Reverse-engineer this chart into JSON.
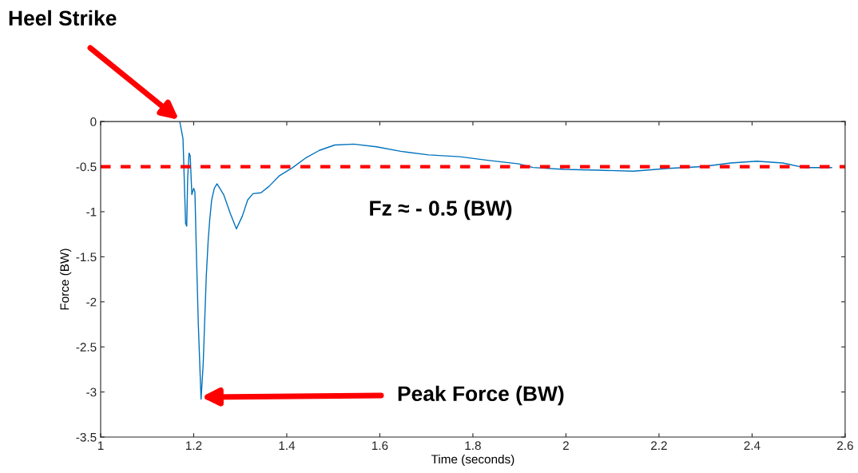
{
  "chart_data": {
    "type": "line",
    "xlabel": "Time (seconds)",
    "ylabel": "Force (BW)",
    "x": [
      1.17,
      1.177,
      1.1826,
      1.185,
      1.187,
      1.19,
      1.1925,
      1.196,
      1.2,
      1.2026,
      1.2055,
      1.21,
      1.2158,
      1.2203,
      1.2243,
      1.227,
      1.2312,
      1.2346,
      1.2386,
      1.2443,
      1.25,
      1.2644,
      1.2787,
      1.2918,
      1.3044,
      1.316,
      1.3274,
      1.3445,
      1.3617,
      1.3845,
      1.413,
      1.4417,
      1.47,
      1.503,
      1.544,
      1.593,
      1.645,
      1.705,
      1.772,
      1.832,
      1.899,
      1.929,
      1.996,
      2.071,
      2.145,
      2.22,
      2.294,
      2.354,
      2.41,
      2.466,
      2.511,
      2.571
    ],
    "series": [
      {
        "color": "#0072bd",
        "values": [
          0,
          -0.19,
          -1.13,
          -1.16,
          -0.63,
          -0.35,
          -0.38,
          -0.81,
          -0.74,
          -0.78,
          -1.4,
          -2.26,
          -3.08,
          -2.7,
          -2.11,
          -1.72,
          -1.31,
          -1.08,
          -0.87,
          -0.74,
          -0.69,
          -0.81,
          -1.02,
          -1.19,
          -1.05,
          -0.87,
          -0.8,
          -0.79,
          -0.72,
          -0.6,
          -0.51,
          -0.4,
          -0.32,
          -0.26,
          -0.25,
          -0.28,
          -0.33,
          -0.37,
          -0.39,
          -0.43,
          -0.47,
          -0.51,
          -0.53,
          -0.54,
          -0.55,
          -0.52,
          -0.5,
          -0.46,
          -0.44,
          -0.46,
          -0.51,
          -0.51
        ]
      }
    ],
    "xlim": [
      1,
      2.6
    ],
    "xticks": [
      1,
      1.2,
      1.4,
      1.6,
      1.8,
      2,
      2.2,
      2.4,
      2.6
    ],
    "ylim": [
      -3.5,
      0
    ],
    "yticks": [
      -3.5,
      -3,
      -2.5,
      -2,
      -1.5,
      -1,
      -0.5,
      0
    ],
    "ref_lines": [
      {
        "axis": "y",
        "value": -0.5,
        "label": "Fz ≈ - 0.5 (BW)",
        "color": "#ff0000",
        "line_style": "dashed"
      }
    ],
    "annotations": [
      "Heel Strike",
      "Peak Force (BW)"
    ],
    "grid": false,
    "legend": false,
    "marker": "none",
    "line_style": "solid"
  }
}
